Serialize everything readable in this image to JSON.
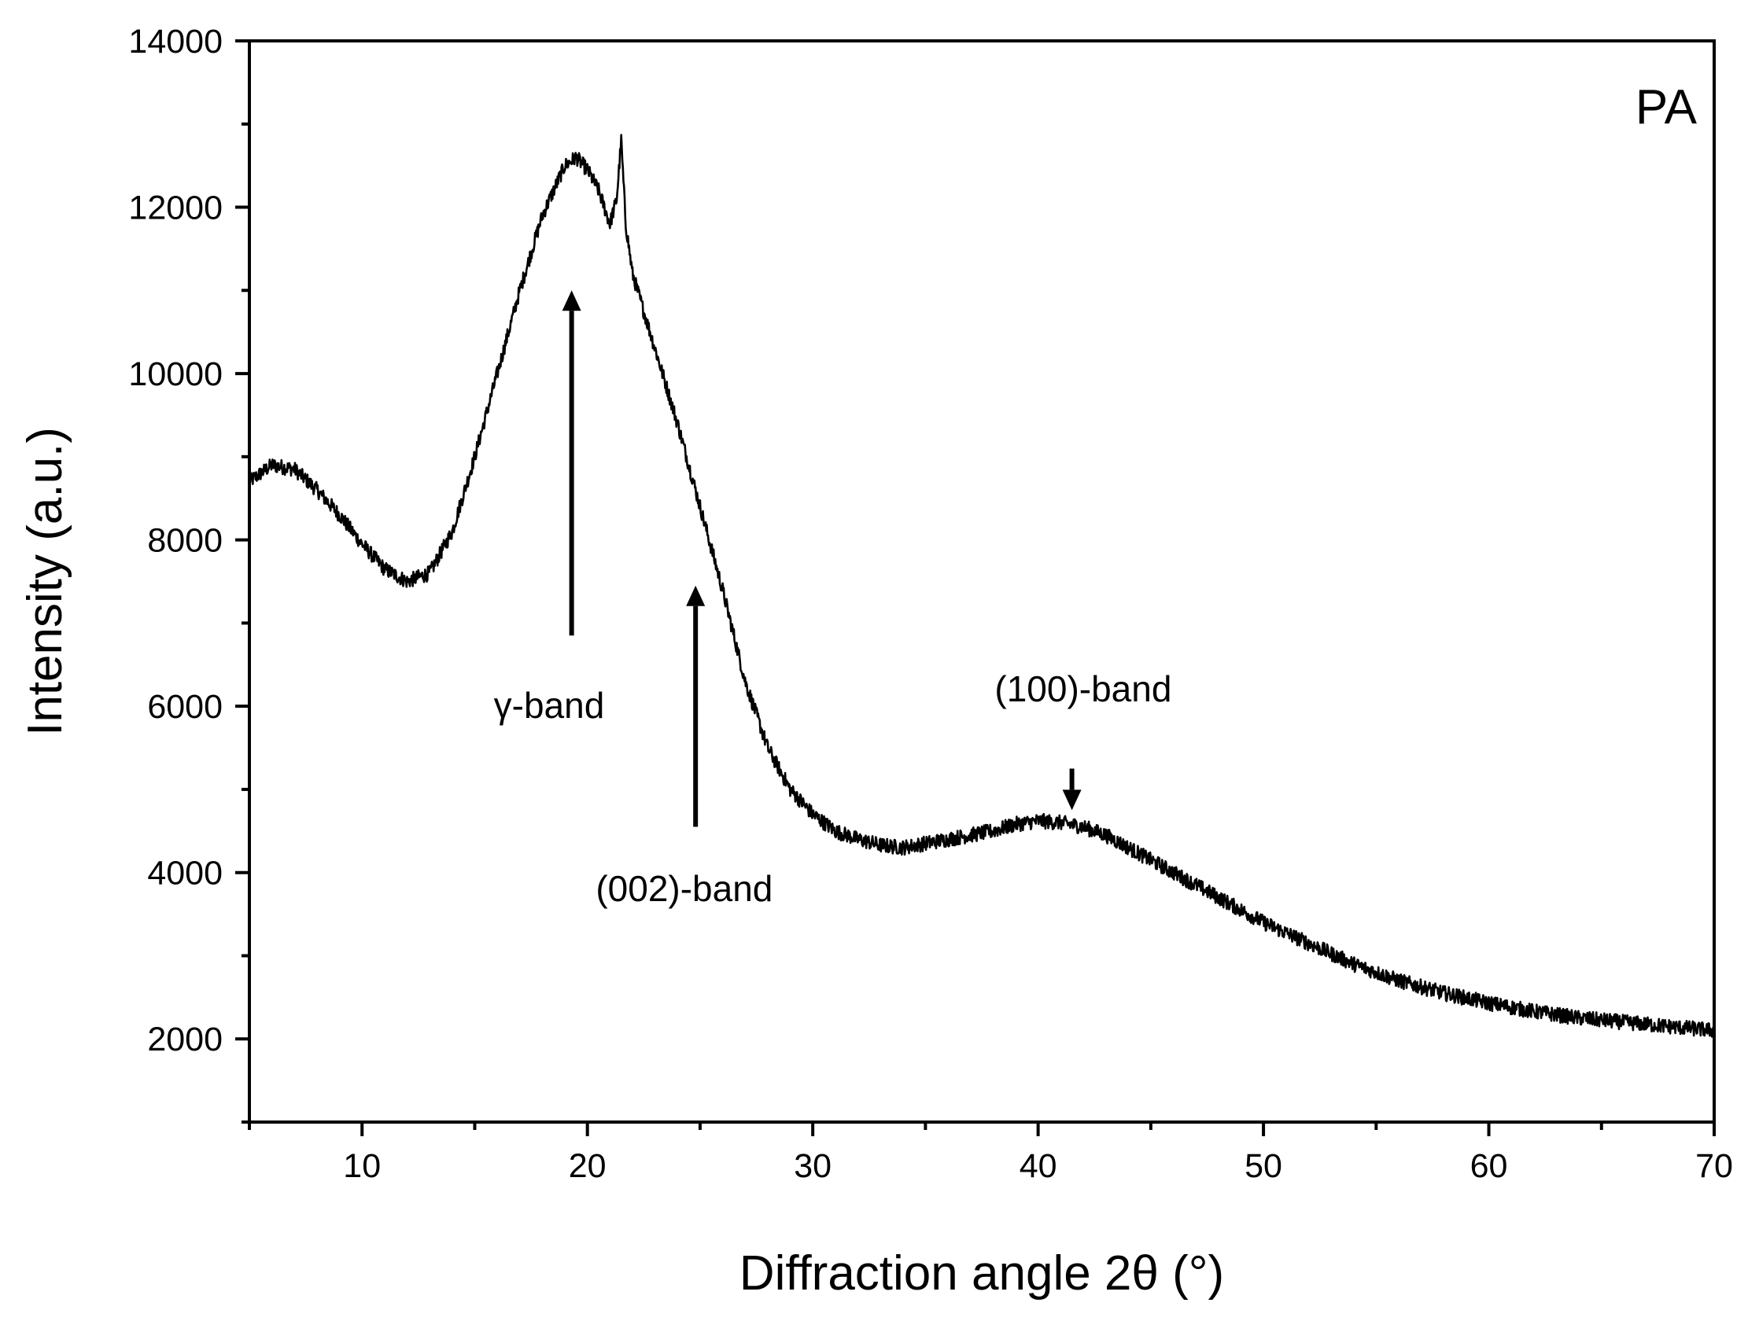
{
  "chart_data": {
    "type": "line",
    "title": "",
    "panel_label": "PA",
    "xlabel": "Diffraction angle 2θ (°)",
    "ylabel": "Intensity (a.u.)",
    "xlim": [
      5,
      70
    ],
    "ylim": [
      1000,
      14000
    ],
    "x_ticks": [
      10,
      20,
      30,
      40,
      50,
      60,
      70
    ],
    "x_tick_labels": [
      "10",
      "20",
      "30",
      "40",
      "50",
      "60",
      "70"
    ],
    "x_minor_ticks": [
      5,
      15,
      25,
      35,
      45,
      55,
      65
    ],
    "y_ticks": [
      2000,
      4000,
      6000,
      8000,
      10000,
      12000,
      14000
    ],
    "y_tick_labels": [
      "2000",
      "4000",
      "6000",
      "8000",
      "10000",
      "12000",
      "14000"
    ],
    "y_minor_ticks": [
      1000,
      3000,
      5000,
      7000,
      9000,
      11000,
      13000
    ],
    "grid": false,
    "legend": "none",
    "series": [
      {
        "name": "PA",
        "color": "#000000",
        "noise_amplitude": 180,
        "x": [
          5,
          6,
          7,
          8,
          9,
          10,
          11,
          12,
          13,
          14,
          15,
          16,
          17,
          18,
          19,
          19.5,
          20,
          20.5,
          21,
          21.3,
          21.5,
          21.7,
          22,
          23,
          24,
          25,
          26,
          27,
          28,
          29,
          30,
          31,
          32,
          33,
          34,
          35,
          36,
          37,
          38,
          39,
          40,
          41,
          42,
          43,
          44,
          45,
          46,
          47,
          48,
          49,
          50,
          52,
          54,
          56,
          58,
          60,
          62,
          64,
          66,
          68,
          70
        ],
        "y": [
          8700,
          8900,
          8850,
          8600,
          8300,
          7950,
          7650,
          7500,
          7600,
          8100,
          9000,
          10000,
          11000,
          11900,
          12500,
          12600,
          12450,
          12200,
          11800,
          12100,
          12800,
          11800,
          11200,
          10300,
          9400,
          8400,
          7400,
          6300,
          5500,
          5000,
          4700,
          4500,
          4400,
          4330,
          4300,
          4350,
          4400,
          4450,
          4500,
          4580,
          4620,
          4600,
          4550,
          4450,
          4300,
          4150,
          4000,
          3850,
          3700,
          3550,
          3400,
          3150,
          2900,
          2700,
          2550,
          2430,
          2330,
          2250,
          2200,
          2150,
          2100
        ]
      }
    ],
    "annotations": [
      {
        "text": "γ-band",
        "arrow_x": 19.3,
        "arrow_tail": 6850,
        "arrow_head": 11000,
        "label_x": 18.3,
        "label_y": 6000
      },
      {
        "text": "(002)-band",
        "arrow_x": 24.8,
        "arrow_tail": 4550,
        "arrow_head": 7450,
        "label_x": 24.3,
        "label_y": 3800
      },
      {
        "text": "(100)-band",
        "arrow_x": 41.5,
        "arrow_tail": 5250,
        "arrow_head": 4750,
        "label_x": 42,
        "label_y": 6200
      }
    ]
  }
}
